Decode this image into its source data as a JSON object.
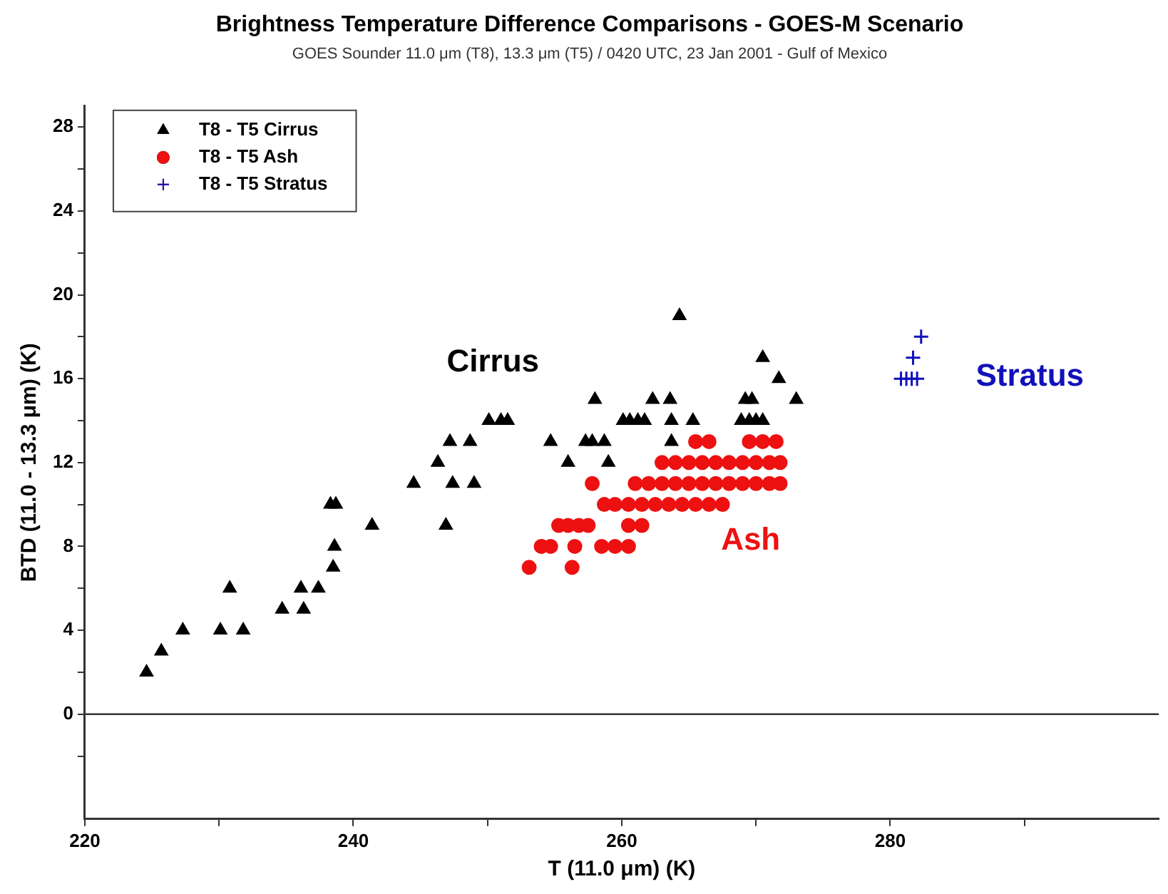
{
  "chart_data": {
    "type": "scatter",
    "title": "Brightness Temperature Difference Comparisons - GOES-M Scenario",
    "subtitle": "GOES Sounder 11.0 μm (T8), 13.3 μm (T5) / 0420 UTC, 23 Jan 2001 - Gulf of Mexico",
    "xlabel": "T (11.0 μm) (K)",
    "ylabel": "BTD (11.0 - 13.3 μm) (K)",
    "xlim": [
      220,
      300
    ],
    "ylim": [
      -5,
      29
    ],
    "xticks": [
      220,
      {
        "value": 230,
        "label": null
      },
      240,
      {
        "value": 250,
        "label": null
      },
      260,
      {
        "value": 270,
        "label": null
      },
      280,
      {
        "value": 290,
        "label": null
      }
    ],
    "yticks": [
      {
        "value": -2,
        "label": null
      },
      0,
      {
        "value": 2,
        "label": null
      },
      4,
      {
        "value": 6,
        "label": null
      },
      8,
      {
        "value": 10,
        "label": null
      },
      12,
      {
        "value": 14,
        "label": null
      },
      16,
      {
        "value": 18,
        "label": null
      },
      20,
      {
        "value": 22,
        "label": null
      },
      24,
      {
        "value": 26,
        "label": null
      },
      28
    ],
    "grid": false,
    "legend": "top left",
    "ref_lines": [
      {
        "axis": "y",
        "value": 0,
        "color": "#333333"
      }
    ],
    "annotations": [
      "Cirrus",
      "Ash",
      "Stratus"
    ],
    "series": [
      {
        "name": "T8 - T5 Cirrus",
        "color": "#000000",
        "marker": "triangle",
        "x": [
          224.6,
          225.7,
          227.3,
          230.1,
          230.8,
          231.8,
          234.7,
          236.1,
          236.3,
          237.4,
          238.3,
          238.7,
          238.6,
          238.5,
          241.4,
          244.5,
          246.3,
          246.9,
          247.2,
          247.4,
          248.7,
          249.0,
          250.1,
          251.0,
          251.5,
          254.7,
          256.0,
          257.3,
          257.8,
          258.7,
          263.7,
          259.0,
          264.3,
          270.5,
          271.7,
          273.0,
          258.0,
          262.3,
          263.6,
          269.2,
          269.7,
          260.1,
          260.6,
          261.2,
          261.7,
          263.7,
          265.3,
          268.9,
          269.5,
          270.0,
          270.5
        ],
        "values": [
          2,
          3,
          4,
          4,
          6,
          4,
          5,
          6,
          5,
          6,
          10,
          10,
          8,
          7,
          9,
          11,
          12,
          9,
          13,
          11,
          13,
          11,
          14,
          14,
          14,
          13,
          12,
          13,
          13,
          13,
          13,
          12,
          19,
          17,
          16,
          15,
          15,
          15,
          15,
          15,
          15,
          14,
          14,
          14,
          14,
          14,
          14,
          14,
          14,
          14,
          14
        ]
      },
      {
        "name": "T8 - T5 Ash",
        "color": "#ee1111",
        "marker": "circle",
        "x": [
          253.1,
          256.3,
          254.0,
          254.7,
          256.5,
          258.5,
          259.5,
          260.5,
          255.3,
          256.0,
          256.8,
          257.5,
          260.5,
          261.5,
          258.7,
          259.5,
          260.5,
          261.5,
          262.5,
          263.5,
          264.5,
          265.5,
          266.5,
          267.5,
          257.8,
          261.0,
          262.0,
          263.0,
          264.0,
          265.0,
          266.0,
          267.0,
          268.0,
          269.0,
          270.0,
          271.0,
          271.8,
          263.0,
          264.0,
          265.0,
          266.0,
          267.0,
          268.0,
          269.0,
          270.0,
          271.0,
          271.8,
          265.5,
          266.5,
          269.5,
          270.5,
          271.5
        ],
        "values": [
          7,
          7,
          8,
          8,
          8,
          8,
          8,
          8,
          9,
          9,
          9,
          9,
          9,
          9,
          10,
          10,
          10,
          10,
          10,
          10,
          10,
          10,
          10,
          10,
          11,
          11,
          11,
          11,
          11,
          11,
          11,
          11,
          11,
          11,
          11,
          11,
          11,
          12,
          12,
          12,
          12,
          12,
          12,
          12,
          12,
          12,
          12,
          13,
          13,
          13,
          13,
          13
        ]
      },
      {
        "name": "T8 - T5 Stratus",
        "color": "#1111bb",
        "marker": "cross",
        "x": [
          282.3,
          281.7,
          280.8,
          281.2,
          281.6,
          282.0
        ],
        "values": [
          18,
          17,
          16,
          16,
          16,
          16
        ]
      }
    ]
  }
}
